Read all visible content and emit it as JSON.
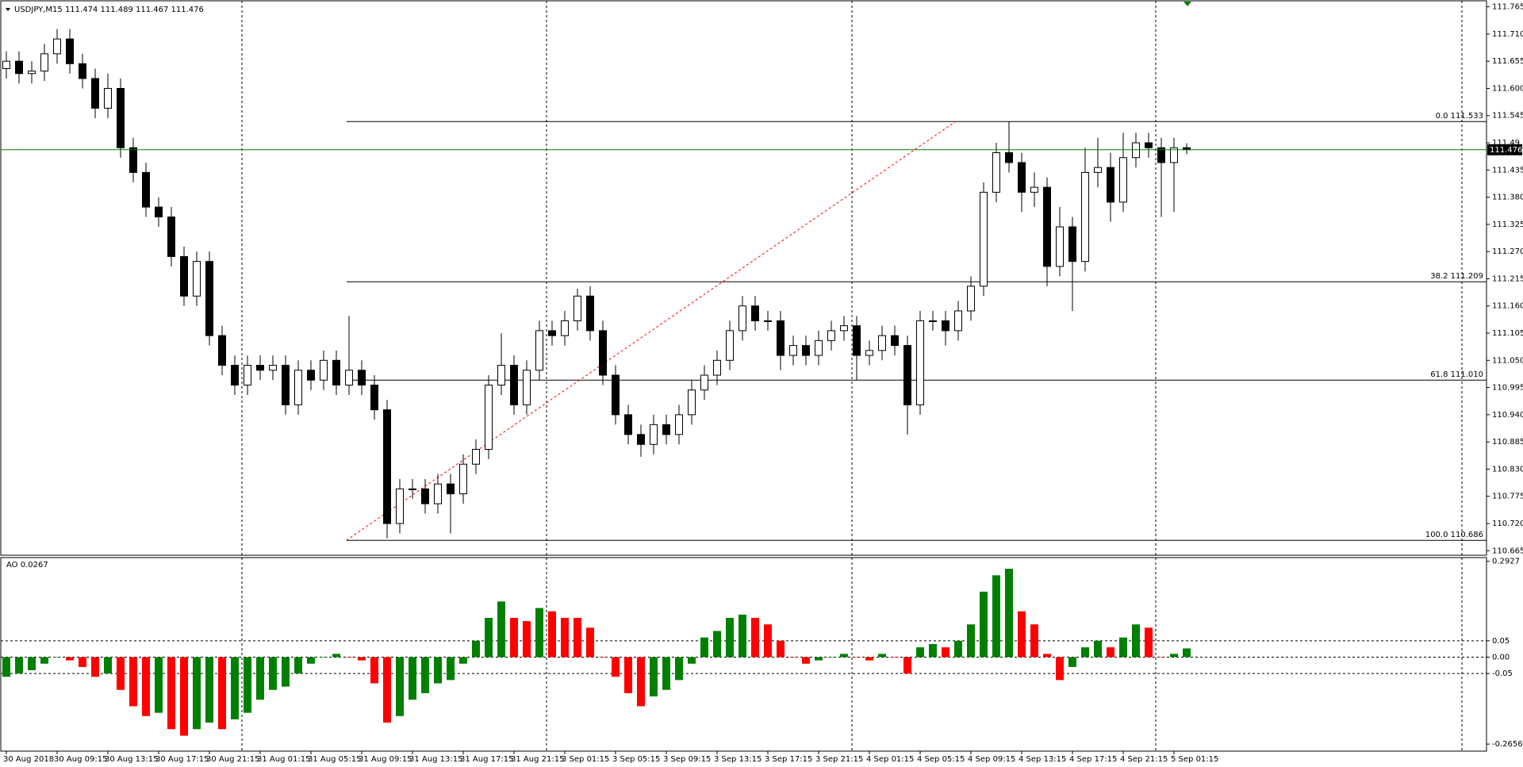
{
  "chart_data": [
    {
      "type": "candlestick",
      "title": "USDJPY,M15  111.474 111.489 111.467 111.476",
      "x_labels": [
        "30 Aug 2018",
        "30 Aug 09:15",
        "30 Aug 13:15",
        "30 Aug 17:15",
        "30 Aug 21:15",
        "31 Aug 01:15",
        "31 Aug 05:15",
        "31 Aug 09:15",
        "31 Aug 13:15",
        "31 Aug 17:15",
        "31 Aug 21:15",
        "3 Sep 01:15",
        "3 Sep 05:15",
        "3 Sep 09:15",
        "3 Sep 13:15",
        "3 Sep 17:15",
        "3 Sep 21:15",
        "4 Sep 01:15",
        "4 Sep 05:15",
        "4 Sep 09:15",
        "4 Sep 13:15",
        "4 Sep 17:15",
        "4 Sep 21:15",
        "5 Sep 01:15"
      ],
      "open": [
        111.64,
        111.655,
        111.63,
        111.635,
        111.67,
        111.7,
        111.65,
        111.62,
        111.56,
        111.6,
        111.48,
        111.43,
        111.36,
        111.34,
        111.26,
        111.18,
        111.25,
        111.1,
        111.04,
        111.0,
        111.04,
        111.03,
        111.04,
        110.96,
        111.03,
        111.01,
        111.05,
        111.0,
        111.03,
        111.0,
        110.95,
        110.72,
        110.79,
        110.79,
        110.76,
        110.8,
        110.78,
        110.84,
        110.87,
        111.0,
        111.04,
        110.96,
        111.03,
        111.11,
        111.1,
        111.13,
        111.18,
        111.11,
        111.02,
        110.94,
        110.9,
        110.88,
        110.92,
        110.9,
        110.94,
        110.99,
        111.02,
        111.05,
        111.11,
        111.16,
        111.13,
        111.13,
        111.06,
        111.08,
        111.06,
        111.09,
        111.11,
        111.12,
        111.06,
        111.07,
        111.1,
        111.08,
        110.96,
        111.13,
        111.13,
        111.11,
        111.15,
        111.2,
        111.39,
        111.47,
        111.45,
        111.39,
        111.4,
        111.24,
        111.32,
        111.25,
        111.43,
        111.44,
        111.37,
        111.46,
        111.49,
        111.48,
        111.45,
        111.48
      ],
      "high": [
        111.675,
        111.675,
        111.655,
        111.69,
        111.72,
        111.72,
        111.67,
        111.64,
        111.63,
        111.62,
        111.5,
        111.45,
        111.38,
        111.36,
        111.28,
        111.27,
        111.27,
        111.12,
        111.06,
        111.06,
        111.06,
        111.06,
        111.06,
        111.05,
        111.05,
        111.07,
        111.07,
        111.14,
        111.05,
        111.02,
        110.97,
        110.81,
        110.81,
        110.81,
        110.82,
        110.82,
        110.86,
        110.89,
        111.02,
        111.105,
        111.06,
        111.05,
        111.13,
        111.13,
        111.15,
        111.195,
        111.2,
        111.13,
        111.04,
        110.96,
        110.92,
        110.94,
        110.94,
        110.96,
        111.01,
        111.04,
        111.07,
        111.13,
        111.18,
        111.18,
        111.15,
        111.15,
        111.1,
        111.1,
        111.11,
        111.13,
        111.14,
        111.14,
        111.09,
        111.12,
        111.12,
        111.1,
        111.15,
        111.15,
        111.15,
        111.17,
        111.22,
        111.41,
        111.49,
        111.533,
        111.47,
        111.43,
        111.42,
        111.36,
        111.34,
        111.48,
        111.5,
        111.47,
        111.51,
        111.51,
        111.51,
        111.5,
        111.5,
        111.489
      ],
      "low": [
        111.62,
        111.61,
        111.61,
        111.615,
        111.65,
        111.63,
        111.6,
        111.54,
        111.54,
        111.46,
        111.41,
        111.34,
        111.32,
        111.24,
        111.16,
        111.16,
        111.08,
        111.02,
        110.98,
        110.98,
        111.01,
        111.01,
        110.94,
        110.94,
        110.99,
        110.99,
        110.98,
        110.98,
        110.98,
        110.93,
        110.69,
        110.7,
        110.77,
        110.74,
        110.74,
        110.7,
        110.76,
        110.82,
        110.85,
        110.98,
        110.94,
        110.94,
        111.01,
        111.08,
        111.08,
        111.11,
        111.09,
        111.0,
        110.92,
        110.88,
        110.855,
        110.86,
        110.88,
        110.88,
        110.92,
        110.97,
        111.0,
        111.03,
        111.09,
        111.11,
        111.11,
        111.03,
        111.04,
        111.04,
        111.04,
        111.07,
        111.09,
        111.01,
        111.04,
        111.05,
        111.06,
        110.9,
        110.94,
        111.11,
        111.08,
        111.09,
        111.13,
        111.18,
        111.37,
        111.43,
        111.35,
        111.36,
        111.2,
        111.22,
        111.15,
        111.23,
        111.4,
        111.33,
        111.35,
        111.44,
        111.46,
        111.34,
        111.35,
        111.467
      ],
      "close": [
        111.655,
        111.63,
        111.635,
        111.67,
        111.7,
        111.65,
        111.62,
        111.56,
        111.6,
        111.48,
        111.43,
        111.36,
        111.34,
        111.26,
        111.18,
        111.25,
        111.1,
        111.04,
        111.0,
        111.04,
        111.03,
        111.04,
        110.96,
        111.03,
        111.01,
        111.05,
        111.0,
        111.03,
        111.0,
        110.95,
        110.72,
        110.79,
        110.79,
        110.76,
        110.8,
        110.78,
        110.84,
        110.87,
        111.0,
        111.04,
        110.96,
        111.03,
        111.11,
        111.1,
        111.13,
        111.18,
        111.11,
        111.02,
        110.94,
        110.9,
        110.88,
        110.92,
        110.9,
        110.94,
        110.99,
        111.02,
        111.05,
        111.11,
        111.16,
        111.13,
        111.13,
        111.06,
        111.08,
        111.06,
        111.09,
        111.11,
        111.12,
        111.06,
        111.07,
        111.1,
        111.08,
        110.96,
        111.13,
        111.13,
        111.11,
        111.15,
        111.2,
        111.39,
        111.47,
        111.45,
        111.39,
        111.4,
        111.24,
        111.32,
        111.25,
        111.43,
        111.44,
        111.37,
        111.46,
        111.49,
        111.48,
        111.45,
        111.48,
        111.476
      ],
      "bull_color": "#ffffff",
      "bear_color": "#000000",
      "wick_color": "#000000",
      "ylim": [
        110.665,
        111.765
      ],
      "yticks": [
        111.765,
        {
          "value": 111.71,
          "label": "111.710"
        },
        111.655,
        {
          "value": 111.6,
          "label": "111.600"
        },
        111.545,
        111.49,
        111.435,
        {
          "value": 111.38,
          "label": "111.380"
        },
        111.325,
        {
          "value": 111.27,
          "label": "111.270"
        },
        111.215,
        {
          "value": 111.16,
          "label": "111.160"
        },
        111.105,
        {
          "value": 111.05,
          "label": "111.050"
        },
        110.995,
        {
          "value": 110.94,
          "label": "110.940"
        },
        110.885,
        {
          "value": 110.83,
          "label": "110.830"
        },
        110.775,
        {
          "value": 110.72,
          "label": "110.720"
        },
        110.665
      ],
      "grid": false,
      "fib_levels": [
        {
          "value": 111.533,
          "label": "0.0 111.533"
        },
        {
          "value": 111.209,
          "label": "38.2 111.209"
        },
        {
          "value": 111.01,
          "label": "61.8 111.010"
        },
        {
          "value": 110.686,
          "label": "100.0 110.686"
        }
      ],
      "fib_color": "#000000",
      "trendline": {
        "x": [
          26.8,
          74.8
        ],
        "values": [
          110.686,
          111.533
        ],
        "color": "#ff0000"
      },
      "current_price": 111.476,
      "current_price_color": "#008000"
    },
    {
      "type": "bar",
      "title": "AO 0.0267",
      "values": [
        -0.06,
        -0.05,
        -0.04,
        -0.02,
        0,
        -0.01,
        -0.03,
        -0.06,
        -0.05,
        -0.1,
        -0.15,
        -0.18,
        -0.17,
        -0.22,
        -0.24,
        -0.22,
        -0.2,
        -0.22,
        -0.19,
        -0.17,
        -0.13,
        -0.1,
        -0.09,
        -0.05,
        -0.02,
        0,
        0.01,
        0,
        -0.01,
        -0.08,
        -0.2,
        -0.18,
        -0.13,
        -0.11,
        -0.08,
        -0.07,
        -0.02,
        0.05,
        0.12,
        0.17,
        0.12,
        0.11,
        0.15,
        0.14,
        0.12,
        0.12,
        0.09,
        0,
        -0.06,
        -0.11,
        -0.15,
        -0.12,
        -0.1,
        -0.07,
        -0.02,
        0.06,
        0.08,
        0.12,
        0.13,
        0.12,
        0.1,
        0.05,
        0,
        -0.02,
        -0.01,
        0,
        0.01,
        0,
        -0.01,
        0.01,
        0,
        -0.05,
        0.03,
        0.04,
        0.03,
        0.05,
        0.1,
        0.2,
        0.25,
        0.27,
        0.14,
        0.1,
        0.01,
        -0.07,
        -0.03,
        0.03,
        0.05,
        0.03,
        0.06,
        0.1,
        0.09,
        0,
        0.01,
        0.0267
      ],
      "up_color": "#008000",
      "down_color": "#ff0000",
      "ylim": [
        -0.2656,
        0.2927
      ],
      "yticks": [
        0.2927,
        0.05,
        {
          "value": 0,
          "label": "0.00"
        },
        -0.05,
        -0.2656
      ]
    }
  ]
}
